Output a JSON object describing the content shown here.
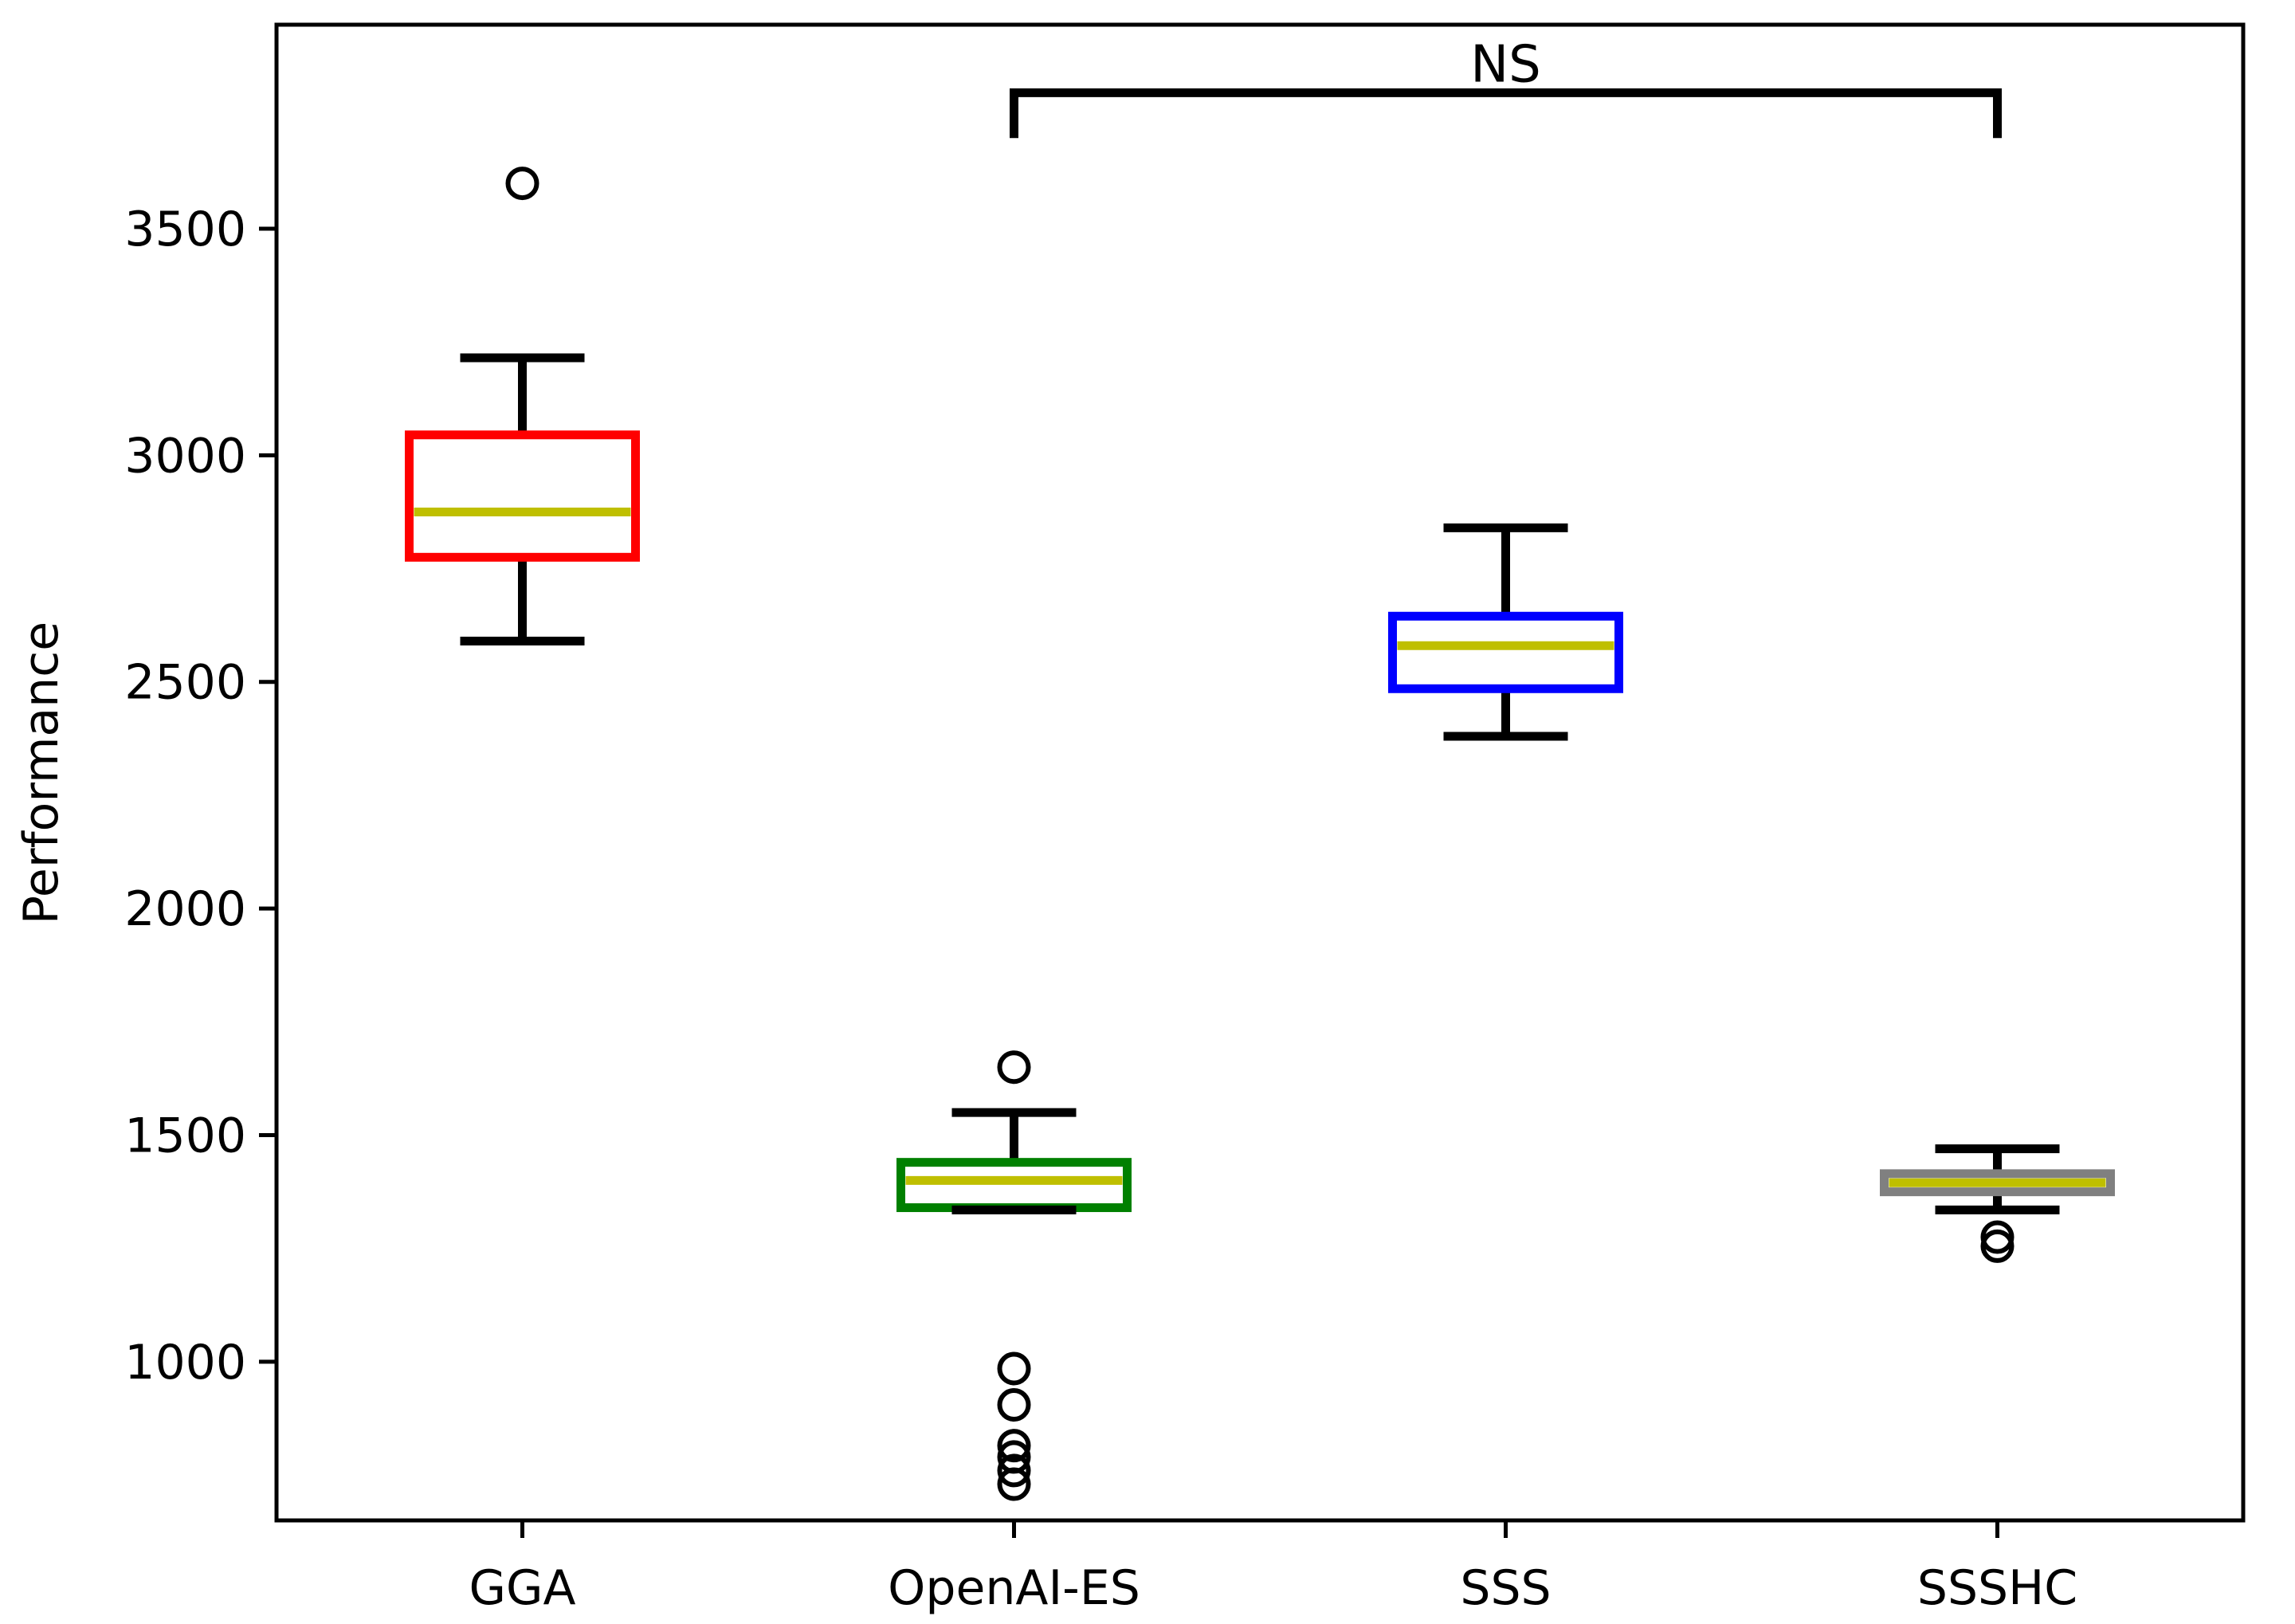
{
  "chart_data": {
    "type": "box",
    "ylabel": "Performance",
    "xlabel": "",
    "ylim": [
      650,
      3950
    ],
    "yticks": [
      1000,
      1500,
      2000,
      2500,
      3000,
      3500
    ],
    "grid": false,
    "boxes": [
      {
        "category": "GGA",
        "box_color": "#ff0000",
        "whisker_low": 2590,
        "q1": 2775,
        "median": 2875,
        "q3": 3045,
        "whisker_high": 3215,
        "outliers": [
          3600
        ]
      },
      {
        "category": "OpenAI-ES",
        "box_color": "#008000",
        "whisker_low": 1335,
        "q1": 1340,
        "median": 1400,
        "q3": 1440,
        "whisker_high": 1550,
        "outliers": [
          1650,
          985,
          905,
          815,
          790,
          760,
          730
        ]
      },
      {
        "category": "SSS",
        "box_color": "#0000ff",
        "whisker_low": 2380,
        "q1": 2485,
        "median": 2580,
        "q3": 2645,
        "whisker_high": 2840,
        "outliers": []
      },
      {
        "category": "SSSHC",
        "box_color": "#808080",
        "whisker_low": 1335,
        "q1": 1375,
        "median": 1395,
        "q3": 1415,
        "whisker_high": 1470,
        "outliers": [
          1275,
          1255
        ]
      }
    ],
    "median_color": "#bfbf00",
    "annotation": {
      "text": "NS",
      "from_category": "OpenAI-ES",
      "to_category": "SSSHC",
      "bar_y": 3800,
      "leg_bottom_y": 3700
    }
  }
}
